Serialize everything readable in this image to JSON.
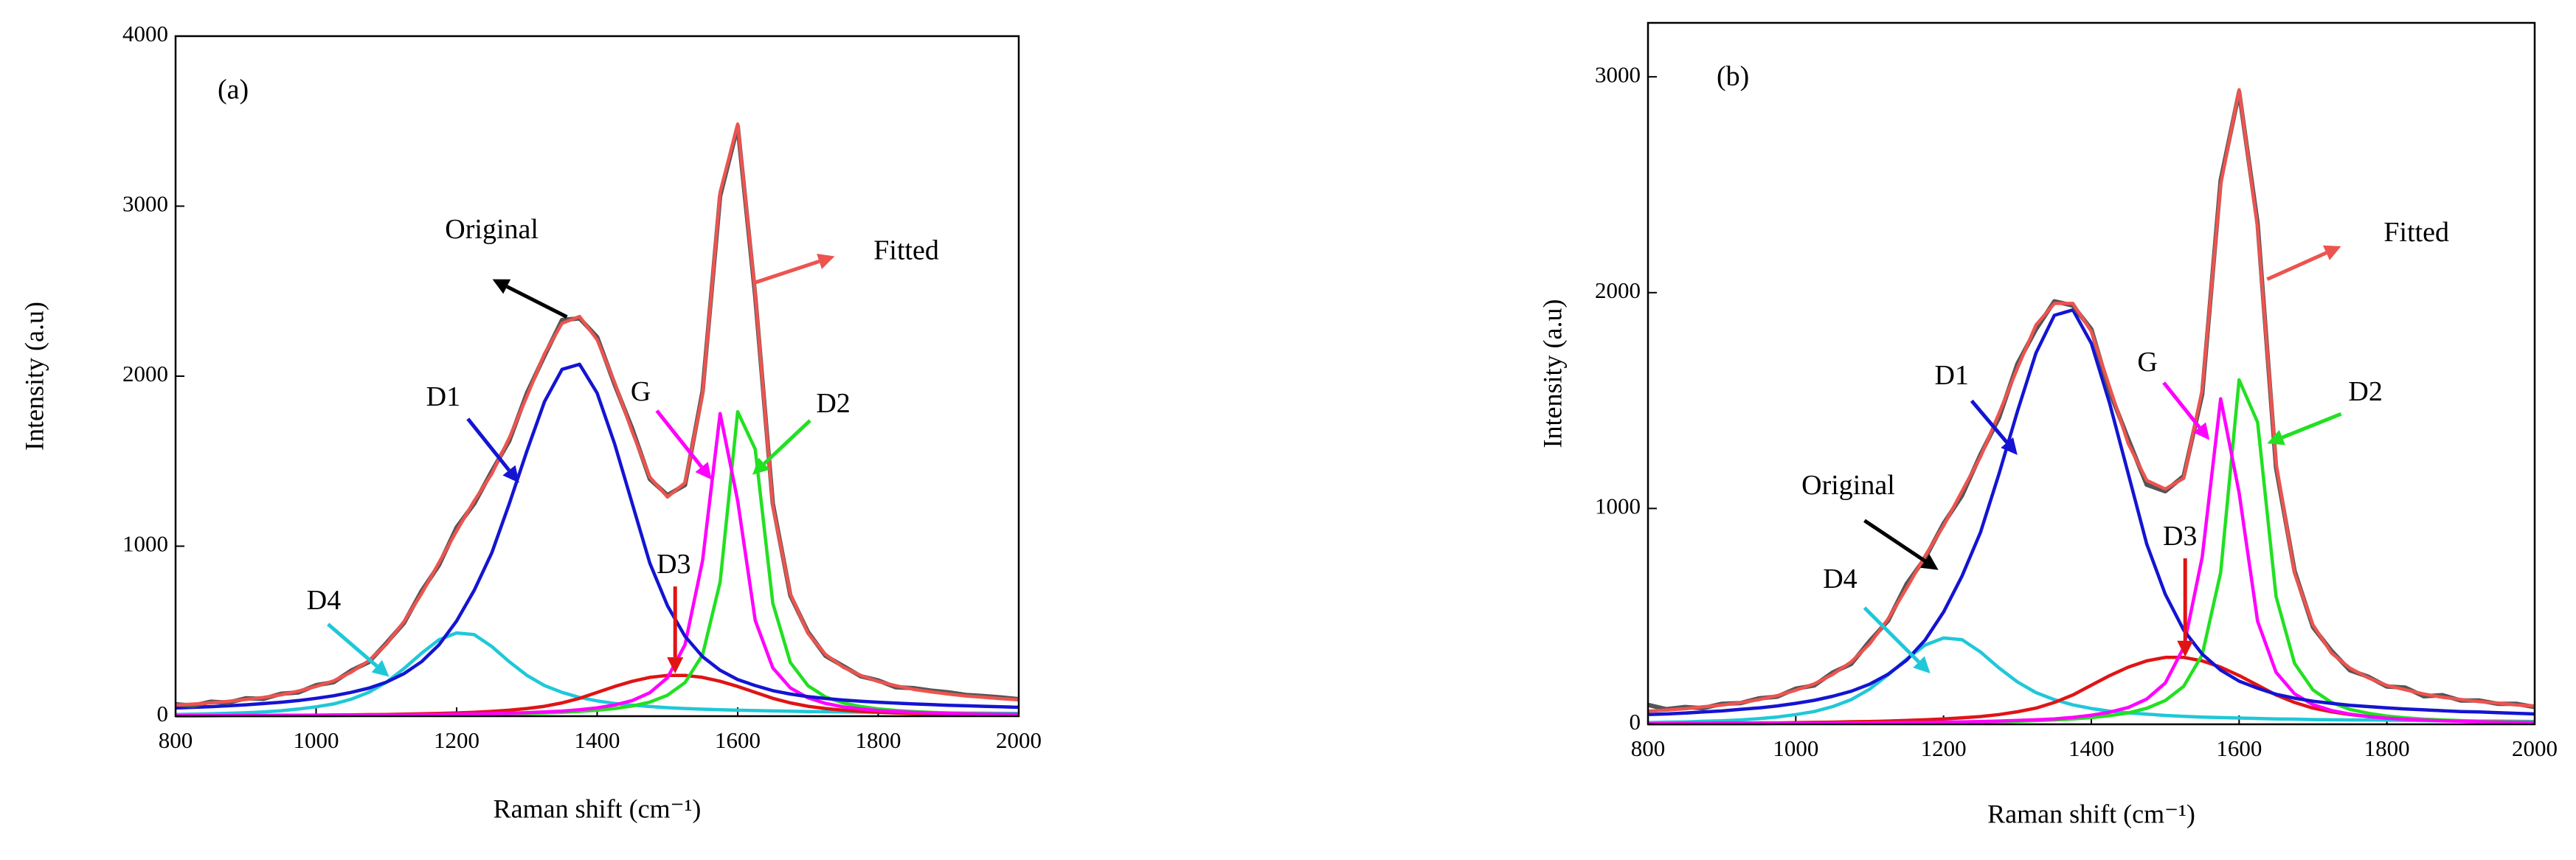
{
  "chart_data": [
    {
      "type": "line",
      "panel_label": "(a)",
      "xlabel": "Raman shift (cm⁻¹)",
      "ylabel": "Intensity (a.u)",
      "xlim": [
        800,
        2000
      ],
      "ylim": [
        0,
        4000
      ],
      "xticks": [
        800,
        1000,
        1200,
        1400,
        1600,
        1800,
        2000
      ],
      "yticks": [
        0,
        1000,
        2000,
        3000,
        4000
      ],
      "x": [
        800,
        825,
        850,
        875,
        900,
        925,
        950,
        975,
        1000,
        1025,
        1050,
        1075,
        1100,
        1125,
        1150,
        1175,
        1200,
        1225,
        1250,
        1275,
        1300,
        1325,
        1350,
        1375,
        1400,
        1425,
        1450,
        1475,
        1500,
        1525,
        1550,
        1575,
        1600,
        1625,
        1650,
        1675,
        1700,
        1725,
        1750,
        1775,
        1800,
        1825,
        1850,
        1875,
        1900,
        1925,
        1950,
        1975,
        2000
      ],
      "series": [
        {
          "name": "D4",
          "color": "#1fc8d8",
          "values": [
            10,
            12,
            14,
            17,
            20,
            25,
            32,
            42,
            55,
            72,
            100,
            140,
            200,
            280,
            370,
            450,
            490,
            480,
            410,
            320,
            240,
            180,
            140,
            110,
            90,
            75,
            65,
            57,
            50,
            45,
            41,
            38,
            35,
            33,
            31,
            29,
            27,
            26,
            25,
            24,
            23,
            22,
            21,
            20,
            19,
            18,
            18,
            17,
            16
          ]
        },
        {
          "name": "D3",
          "color": "#e01414",
          "values": [
            2,
            2,
            3,
            3,
            4,
            4,
            5,
            5,
            6,
            7,
            8,
            9,
            10,
            12,
            14,
            16,
            19,
            23,
            28,
            35,
            45,
            58,
            78,
            105,
            140,
            175,
            205,
            228,
            240,
            240,
            228,
            205,
            175,
            140,
            105,
            78,
            58,
            45,
            35,
            28,
            23,
            19,
            16,
            14,
            12,
            10,
            9,
            8,
            7
          ]
        },
        {
          "name": "D2",
          "color": "#22e022",
          "values": [
            2,
            2,
            2,
            3,
            3,
            3,
            3,
            4,
            4,
            4,
            5,
            5,
            6,
            6,
            7,
            8,
            9,
            10,
            12,
            14,
            16,
            19,
            23,
            28,
            35,
            45,
            60,
            83,
            123,
            198,
            361,
            789,
            1791,
            1570,
            664,
            316,
            179,
            113,
            78,
            57,
            43,
            34,
            27,
            22,
            19,
            16,
            14,
            12,
            11
          ]
        },
        {
          "name": "G",
          "color": "#ff00ff",
          "values": [
            3,
            3,
            3,
            3,
            4,
            4,
            4,
            5,
            5,
            5,
            6,
            7,
            7,
            8,
            9,
            10,
            12,
            13,
            15,
            18,
            21,
            25,
            30,
            38,
            49,
            66,
            92,
            138,
            226,
            420,
            915,
            1780,
            1267,
            563,
            284,
            166,
            108,
            75,
            55,
            43,
            33,
            27,
            22,
            19,
            16,
            14,
            12,
            11,
            10
          ]
        },
        {
          "name": "D1",
          "color": "#1414d2",
          "values": [
            48,
            52,
            56,
            61,
            67,
            74,
            82,
            92,
            105,
            120,
            140,
            165,
            200,
            250,
            320,
            420,
            560,
            740,
            960,
            1250,
            1560,
            1850,
            2040,
            2070,
            1900,
            1600,
            1250,
            900,
            650,
            470,
            350,
            270,
            215,
            180,
            150,
            130,
            115,
            104,
            95,
            88,
            82,
            77,
            72,
            68,
            64,
            61,
            58,
            55,
            52
          ]
        },
        {
          "name": "Original",
          "color": "#555555",
          "values": [
            70,
            62,
            85,
            80,
            105,
            102,
            132,
            140,
            182,
            200,
            268,
            318,
            430,
            548,
            735,
            890,
            1110,
            1250,
            1440,
            1620,
            1900,
            2120,
            2330,
            2340,
            2230,
            1950,
            1690,
            1395,
            1300,
            1360,
            1910,
            3060,
            3470,
            2470,
            1250,
            710,
            495,
            355,
            295,
            235,
            210,
            170,
            165,
            150,
            140,
            125,
            118,
            110,
            100
          ]
        },
        {
          "name": "Fitted",
          "color": "#ec5450",
          "values": [
            65,
            71,
            78,
            87,
            98,
            110,
            126,
            148,
            175,
            208,
            259,
            326,
            423,
            556,
            720,
            904,
            1090,
            1266,
            1425,
            1637,
            1882,
            2132,
            2311,
            2351,
            2214,
            1961,
            1672,
            1406,
            1289,
            1373,
            1895,
            3082,
            3483,
            2486,
            1234,
            719,
            487,
            363,
            288,
            240,
            204,
            179,
            158,
            143,
            130,
            119,
            111,
            103,
            96
          ]
        }
      ]
    },
    {
      "type": "line",
      "panel_label": "(b)",
      "xlabel": "Raman shift (cm⁻¹)",
      "ylabel": "Intensity (a.u)",
      "xlim": [
        800,
        2000
      ],
      "ylim": [
        0,
        3250
      ],
      "xticks": [
        800,
        1000,
        1200,
        1400,
        1600,
        1800,
        2000
      ],
      "yticks": [
        0,
        1000,
        2000,
        3000
      ],
      "x": [
        800,
        825,
        850,
        875,
        900,
        925,
        950,
        975,
        1000,
        1025,
        1050,
        1075,
        1100,
        1125,
        1150,
        1175,
        1200,
        1225,
        1250,
        1275,
        1300,
        1325,
        1350,
        1375,
        1400,
        1425,
        1450,
        1475,
        1500,
        1525,
        1550,
        1575,
        1600,
        1625,
        1650,
        1675,
        1700,
        1725,
        1750,
        1775,
        1800,
        1825,
        1850,
        1875,
        1900,
        1925,
        1950,
        1975,
        2000
      ],
      "series": [
        {
          "name": "D4",
          "color": "#1fc8d8",
          "values": [
            8,
            10,
            11,
            14,
            16,
            20,
            26,
            34,
            45,
            59,
            82,
            114,
            163,
            229,
            302,
            367,
            400,
            392,
            335,
            261,
            196,
            147,
            114,
            90,
            73,
            61,
            53,
            47,
            41,
            37,
            33,
            31,
            29,
            27,
            25,
            24,
            22,
            21,
            20,
            20,
            19,
            18,
            17,
            16,
            16,
            15,
            15,
            14,
            13
          ]
        },
        {
          "name": "D3",
          "color": "#e01414",
          "values": [
            3,
            3,
            4,
            4,
            5,
            5,
            6,
            6,
            8,
            9,
            10,
            12,
            13,
            15,
            18,
            21,
            25,
            30,
            36,
            45,
            58,
            75,
            101,
            136,
            181,
            226,
            265,
            294,
            310,
            310,
            294,
            265,
            226,
            181,
            136,
            101,
            75,
            58,
            45,
            36,
            30,
            25,
            21,
            18,
            15,
            13,
            12,
            10,
            9
          ]
        },
        {
          "name": "D2",
          "color": "#22e022",
          "values": [
            2,
            2,
            2,
            3,
            3,
            3,
            3,
            4,
            4,
            4,
            4,
            4,
            5,
            5,
            6,
            7,
            8,
            9,
            11,
            12,
            14,
            17,
            20,
            25,
            31,
            40,
            53,
            74,
            110,
            176,
            322,
            703,
            1596,
            1399,
            592,
            282,
            159,
            101,
            69,
            51,
            38,
            30,
            24,
            20,
            17,
            14,
            12,
            11,
            10
          ]
        },
        {
          "name": "G",
          "color": "#ff00ff",
          "values": [
            3,
            3,
            3,
            3,
            3,
            3,
            3,
            4,
            4,
            4,
            5,
            6,
            6,
            7,
            8,
            8,
            10,
            11,
            13,
            15,
            18,
            21,
            25,
            32,
            42,
            56,
            78,
            117,
            191,
            356,
            775,
            1508,
            1073,
            477,
            241,
            141,
            91,
            64,
            47,
            36,
            28,
            23,
            19,
            16,
            14,
            12,
            10,
            9,
            8
          ]
        },
        {
          "name": "D1",
          "color": "#1414d2",
          "values": [
            45,
            48,
            52,
            57,
            62,
            69,
            76,
            85,
            97,
            111,
            130,
            153,
            186,
            232,
            297,
            390,
            520,
            687,
            890,
            1160,
            1450,
            1720,
            1895,
            1920,
            1765,
            1485,
            1160,
            835,
            603,
            436,
            325,
            251,
            200,
            167,
            139,
            121,
            107,
            97,
            88,
            82,
            76,
            71,
            67,
            63,
            59,
            57,
            54,
            51,
            48
          ]
        },
        {
          "name": "Original",
          "color": "#555555",
          "values": [
            90,
            70,
            80,
            75,
            95,
            98,
            120,
            128,
            165,
            180,
            240,
            280,
            385,
            480,
            650,
            770,
            930,
            1060,
            1250,
            1420,
            1670,
            1830,
            1960,
            1940,
            1830,
            1540,
            1320,
            1110,
            1080,
            1150,
            1530,
            2520,
            2930,
            2320,
            1190,
            710,
            450,
            340,
            250,
            220,
            175,
            170,
            130,
            135,
            110,
            110,
            95,
            95,
            80
          ]
        },
        {
          "name": "Fitted",
          "color": "#ec5450",
          "values": [
            61,
            66,
            72,
            81,
            89,
            100,
            114,
            133,
            158,
            187,
            231,
            289,
            373,
            488,
            631,
            780,
            920,
            1080,
            1240,
            1440,
            1650,
            1850,
            1950,
            1950,
            1820,
            1560,
            1300,
            1130,
            1090,
            1140,
            1550,
            2500,
            2940,
            2300,
            1210,
            700,
            460,
            330,
            260,
            215,
            180,
            160,
            140,
            125,
            115,
            105,
            98,
            90,
            85
          ]
        }
      ]
    }
  ]
}
